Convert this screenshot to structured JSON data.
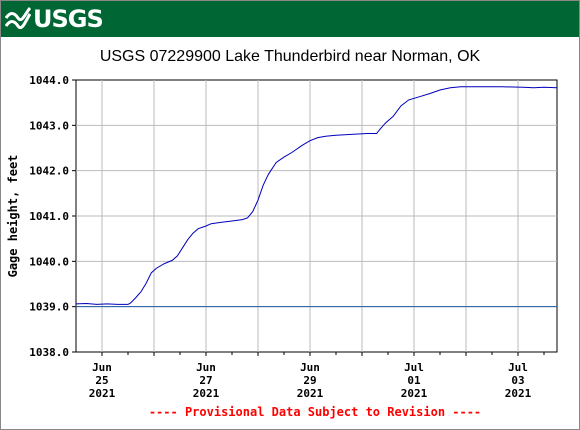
{
  "logo": {
    "text": "USGS"
  },
  "colors": {
    "banner": "#006633",
    "line": "#0000bb",
    "reference": "#1e5aa8",
    "notice": "#ff0000",
    "grid": "#bbbbbb"
  },
  "chart_data": {
    "type": "line",
    "title": "USGS 07229900 Lake Thunderbird near Norman, OK",
    "ylabel": "Gage height, feet",
    "xlabel": "",
    "ylim": [
      1038.0,
      1044.0
    ],
    "x_range_days": [
      0,
      9.25
    ],
    "y_ticks": [
      "1038.0",
      "1039.0",
      "1040.0",
      "1041.0",
      "1042.0",
      "1043.0",
      "1044.0"
    ],
    "x_ticks": [
      {
        "day": 0.5,
        "month": "Jun",
        "date": "25",
        "year": "2021"
      },
      {
        "day": 2.5,
        "month": "Jun",
        "date": "27",
        "year": "2021"
      },
      {
        "day": 4.5,
        "month": "Jun",
        "date": "29",
        "year": "2021"
      },
      {
        "day": 6.5,
        "month": "Jul",
        "date": "01",
        "year": "2021"
      },
      {
        "day": 8.5,
        "month": "Jul",
        "date": "03",
        "year": "2021"
      }
    ],
    "grid": true,
    "series": [
      {
        "points": [
          [
            0.0,
            1039.06
          ],
          [
            0.2,
            1039.07
          ],
          [
            0.4,
            1039.05
          ],
          [
            0.6,
            1039.06
          ],
          [
            0.8,
            1039.05
          ],
          [
            1.0,
            1039.05
          ],
          [
            1.05,
            1039.08
          ],
          [
            1.15,
            1039.2
          ],
          [
            1.25,
            1039.33
          ],
          [
            1.35,
            1039.52
          ],
          [
            1.45,
            1039.75
          ],
          [
            1.55,
            1039.85
          ],
          [
            1.7,
            1039.95
          ],
          [
            1.85,
            1040.02
          ],
          [
            1.95,
            1040.12
          ],
          [
            2.05,
            1040.3
          ],
          [
            2.15,
            1040.48
          ],
          [
            2.25,
            1040.62
          ],
          [
            2.35,
            1040.72
          ],
          [
            2.5,
            1040.78
          ],
          [
            2.6,
            1040.83
          ],
          [
            2.8,
            1040.86
          ],
          [
            3.0,
            1040.89
          ],
          [
            3.2,
            1040.92
          ],
          [
            3.3,
            1040.96
          ],
          [
            3.4,
            1041.1
          ],
          [
            3.5,
            1041.35
          ],
          [
            3.6,
            1041.68
          ],
          [
            3.7,
            1041.92
          ],
          [
            3.85,
            1042.18
          ],
          [
            4.0,
            1042.3
          ],
          [
            4.15,
            1042.4
          ],
          [
            4.35,
            1042.56
          ],
          [
            4.5,
            1042.66
          ],
          [
            4.65,
            1042.73
          ],
          [
            4.8,
            1042.76
          ],
          [
            5.0,
            1042.78
          ],
          [
            5.3,
            1042.8
          ],
          [
            5.6,
            1042.82
          ],
          [
            5.78,
            1042.82
          ],
          [
            5.85,
            1042.92
          ],
          [
            5.95,
            1043.05
          ],
          [
            6.1,
            1043.2
          ],
          [
            6.25,
            1043.43
          ],
          [
            6.4,
            1043.56
          ],
          [
            6.6,
            1043.63
          ],
          [
            6.8,
            1043.7
          ],
          [
            7.0,
            1043.78
          ],
          [
            7.2,
            1043.83
          ],
          [
            7.4,
            1043.85
          ],
          [
            7.8,
            1043.85
          ],
          [
            8.2,
            1043.85
          ],
          [
            8.6,
            1043.84
          ],
          [
            8.8,
            1043.83
          ],
          [
            9.0,
            1043.84
          ],
          [
            9.25,
            1043.83
          ]
        ]
      }
    ],
    "reference_line": {
      "y": 1039.0
    },
    "notice": "---- Provisional Data Subject to Revision ----"
  }
}
